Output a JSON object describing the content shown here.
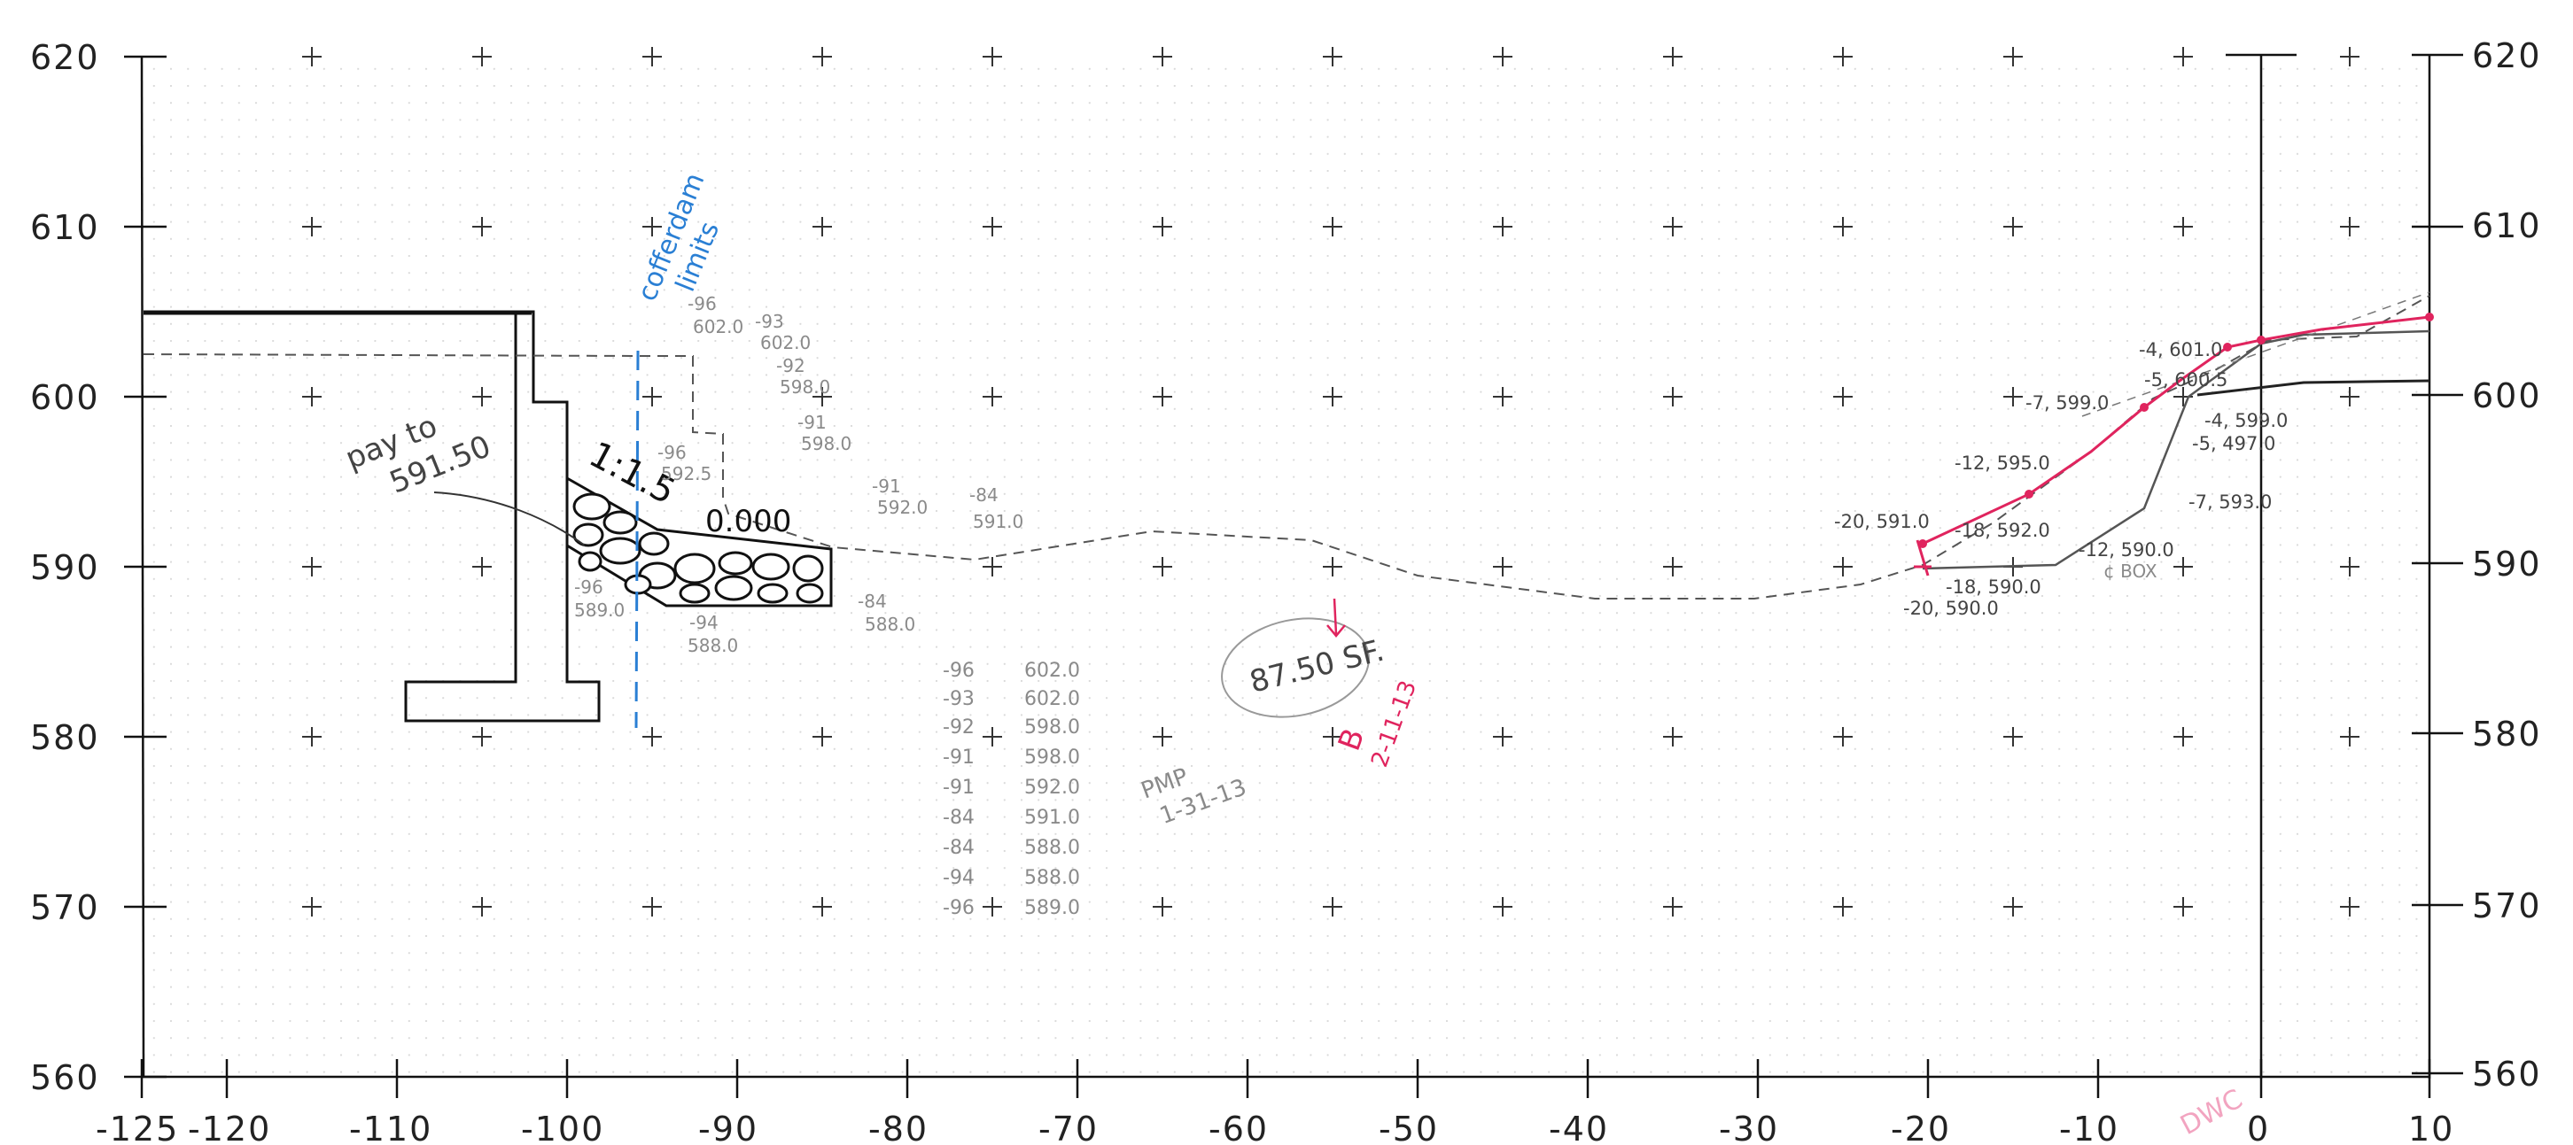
{
  "axes": {
    "y_left": [
      "620",
      "610",
      "600",
      "590",
      "580",
      "570",
      "560"
    ],
    "y_right": [
      "620",
      "610",
      "600",
      "590",
      "580",
      "570",
      "560"
    ],
    "x_bottom": [
      "-125",
      "-120",
      "-110",
      "-100",
      "-90",
      "-80",
      "-70",
      "-60",
      "-50",
      "-40",
      "-30",
      "-20",
      "-10",
      "0",
      "10"
    ]
  },
  "annotations": {
    "cofferdam": [
      "cofferdam",
      "limits"
    ],
    "pay_to": [
      "pay to",
      "591.50"
    ],
    "slope": "1:1.5",
    "zero_label": "0.000",
    "area": "87.50 SF.",
    "init_pmp": [
      "PMP",
      "1-31-13"
    ],
    "init_red": [
      "B",
      "2-11-13"
    ],
    "init_bottom": "DWC",
    "center_box": "¢ BOX"
  },
  "left_points": [
    {
      "sta": "-96",
      "el": "602.0"
    },
    {
      "sta": "-93",
      "el": "602.0"
    },
    {
      "sta": "-92",
      "el": "598.0"
    },
    {
      "sta": "-91",
      "el": "598.0"
    },
    {
      "sta": "-96",
      "el": "592.5"
    },
    {
      "sta": "-91",
      "el": "592.0"
    },
    {
      "sta": "-84",
      "el": "591.0"
    },
    {
      "sta": "-96",
      "el": "589.0"
    },
    {
      "sta": "-94",
      "el": "588.0"
    },
    {
      "sta": "-84",
      "el": "588.0"
    }
  ],
  "table": [
    {
      "sta": "-96",
      "el": "602.0"
    },
    {
      "sta": "-93",
      "el": "602.0"
    },
    {
      "sta": "-92",
      "el": "598.0"
    },
    {
      "sta": "-91",
      "el": "598.0"
    },
    {
      "sta": "-91",
      "el": "592.0"
    },
    {
      "sta": "-84",
      "el": "591.0"
    },
    {
      "sta": "-84",
      "el": "588.0"
    },
    {
      "sta": "-94",
      "el": "588.0"
    },
    {
      "sta": "-96",
      "el": "589.0"
    }
  ],
  "right_points": [
    "-4, 601.0",
    "-5, 600.5",
    "-7, 599.0",
    "-4, 599.0",
    "-5, 497.0",
    "-12, 595.0",
    "-7, 593.0",
    "-20, 591.0",
    "-18, 592.0",
    "-12, 590.0",
    "-18, 590.0",
    "-20, 590.0"
  ]
}
